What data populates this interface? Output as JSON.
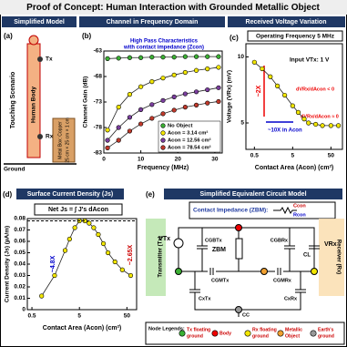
{
  "title": "Proof of Concept: Human Interaction with Grounded Metallic Object",
  "panel_a": {
    "header": "Simplified Model",
    "label": "(a)",
    "scenario": "Touching Scenario",
    "body": "Human Body",
    "tx": "Tx",
    "rx": "Rx",
    "box": [
      "Metal Box: Copper",
      "25 cm × 25 cm × 1 cm"
    ],
    "ground": "Ground"
  },
  "chart_data": [
    {
      "type": "line",
      "header": "Channel in Frequency Domain",
      "label": "(b)",
      "annotation": [
        "High Pass Characteristics",
        "with contact impedance (Zcon)"
      ],
      "xlabel": "Frequency (MHz)",
      "ylabel": "Channel Gain (dB)",
      "x": [
        1,
        4,
        7,
        10,
        13,
        16,
        19,
        22,
        25,
        28,
        31
      ],
      "xlim": [
        0,
        32
      ],
      "xticks": [
        0,
        10,
        20,
        30
      ],
      "ylim": [
        -83,
        -63
      ],
      "yticks": [
        -63,
        -68,
        -73,
        -78,
        -83
      ],
      "legend": "lower right",
      "series": [
        {
          "name": "No Object",
          "color": "#3cb034",
          "values": [
            -64.5,
            -64.4,
            -64.3,
            -64.3,
            -64.2,
            -64.2,
            -64.2,
            -64.1,
            -64.1,
            -64.1,
            -64.1
          ]
        },
        {
          "name": "Acon = 3.14 cm²",
          "color": "#f2e600",
          "values": [
            -78.5,
            -74,
            -71.5,
            -70,
            -69,
            -68.3,
            -67.7,
            -67.2,
            -66.8,
            -66.5,
            -66.2
          ]
        },
        {
          "name": "Acon = 12.56 cm²",
          "color": "#7b3f9e",
          "values": [
            -80.5,
            -78,
            -76,
            -74.5,
            -73.5,
            -72.7,
            -72,
            -71.4,
            -71,
            -70.6,
            -70.2
          ]
        },
        {
          "name": "Acon = 78.54 cm²",
          "color": "#c0392b",
          "values": [
            -82,
            -80.5,
            -78.7,
            -77.3,
            -76.2,
            -75.3,
            -74.6,
            -74,
            -73.6,
            -73.2,
            -72.9
          ]
        }
      ]
    },
    {
      "type": "line",
      "header": "Received Voltage Variation",
      "label": "(c)",
      "xscale": "log",
      "subheader": "Operating Frequency 5 MHz",
      "annotations": [
        "Input VTx: 1 V",
        "~2X",
        "~10X in Acon",
        "dVRx/dAcon < 0",
        "dVRx/dAcon ≈ 0"
      ],
      "xlabel": "Contact Area (Acon) (cm²)",
      "ylabel": "Voltage (VRx) (mV)",
      "x": [
        0.5,
        0.8,
        1.3,
        2,
        3.1,
        5,
        7,
        10,
        13,
        20,
        30,
        50,
        78.5
      ],
      "values": [
        9.6,
        9.1,
        8.5,
        7.8,
        7.1,
        6.3,
        5.8,
        5.3,
        5,
        4.9,
        4.8,
        4.8,
        4.8
      ],
      "color": "#f2e600",
      "xlim": [
        0.3,
        100
      ],
      "xticks": [
        0.5,
        5,
        50
      ],
      "ylim": [
        3,
        11
      ],
      "yticks": [
        5,
        10
      ]
    },
    {
      "type": "line",
      "header": "Surface Current Density (Js)",
      "label": "(d)",
      "xscale": "log",
      "subheader": "Net Js = ∫ J's dAcon",
      "annotations": [
        "~4.8X",
        "~2.65X"
      ],
      "xlabel": "Contact Area (Acon) (cm²)",
      "ylabel": "Current Density (Js) (µA/m)",
      "x": [
        0.8,
        1.5,
        2.5,
        3.1,
        4,
        5,
        6.5,
        8,
        10,
        12.5,
        16,
        20,
        28,
        40,
        60
      ],
      "values": [
        0.012,
        0.03,
        0.052,
        0.062,
        0.072,
        0.078,
        0.078,
        0.076,
        0.072,
        0.066,
        0.058,
        0.05,
        0.042,
        0.035,
        0.03
      ],
      "color": "#f2e600",
      "xlim": [
        0.4,
        80
      ],
      "xticks": [
        0.5,
        5,
        50
      ],
      "ylim": [
        0,
        0.08
      ],
      "yticks": [
        0,
        0.01,
        0.02,
        0.03,
        0.04,
        0.05,
        0.06,
        0.07,
        0.08
      ]
    }
  ],
  "panel_e": {
    "header": "Simplified Equivalent Circuit Model",
    "label": "(e)",
    "contact": "Contact Impedance (ZBM):",
    "rcon": "Rcon",
    "ccon": "Ccon",
    "vtx": "VTx",
    "transmitter": "Transmitter (Tx)",
    "cgbtx": "CGBTx",
    "zbm": "ZBM",
    "cgbrx": "CGBRx",
    "cl": "CL",
    "vrx": "VRx",
    "receiver": "Receiver (Rx)",
    "cgmtx": "CGMTx",
    "cgmrx": "CGMRx",
    "cxtx": "CxTx",
    "cxrx": "CxRx",
    "cc": "CC",
    "legend_title": "Node Legends:",
    "legend": [
      [
        "Tx floating",
        "ground"
      ],
      [
        "Body"
      ],
      [
        "Rx floating",
        "ground"
      ],
      [
        "Metallic",
        "Object"
      ],
      [
        "Earth's",
        "ground"
      ]
    ]
  }
}
